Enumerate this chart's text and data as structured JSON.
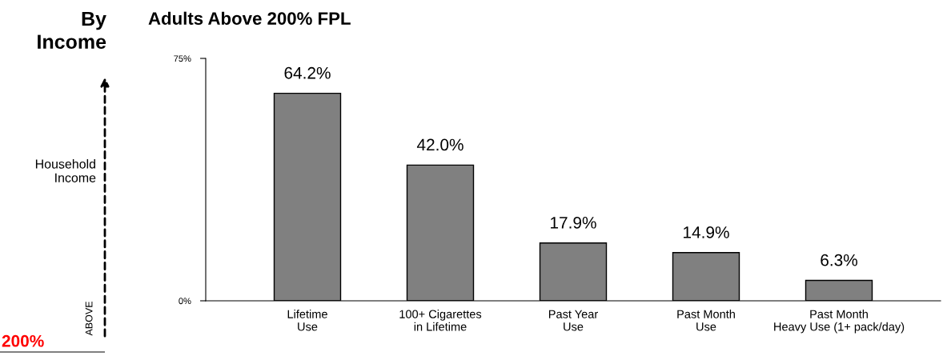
{
  "chart_data": {
    "type": "bar",
    "title": "Adults Above 200% FPL",
    "categories": [
      "Lifetime\nUse",
      "100+ Cigarettes\nin Lifetime",
      "Past Year\nUse",
      "Past Month\nUse",
      "Past Month\nHeavy Use (1+ pack/day)"
    ],
    "values": [
      64.2,
      42.0,
      17.9,
      14.9,
      6.3
    ],
    "value_labels": [
      "64.2%",
      "42.0%",
      "17.9%",
      "14.9%",
      "6.3%"
    ],
    "color": "#808080",
    "ylim": [
      0,
      75
    ],
    "yticks": [
      {
        "value": 0,
        "label": "0%"
      },
      {
        "value": 75,
        "label": "75%"
      }
    ],
    "grid": false,
    "annotations": [
      "By\nIncome",
      "Household\nIncome",
      "ABOVE",
      "200%"
    ]
  }
}
